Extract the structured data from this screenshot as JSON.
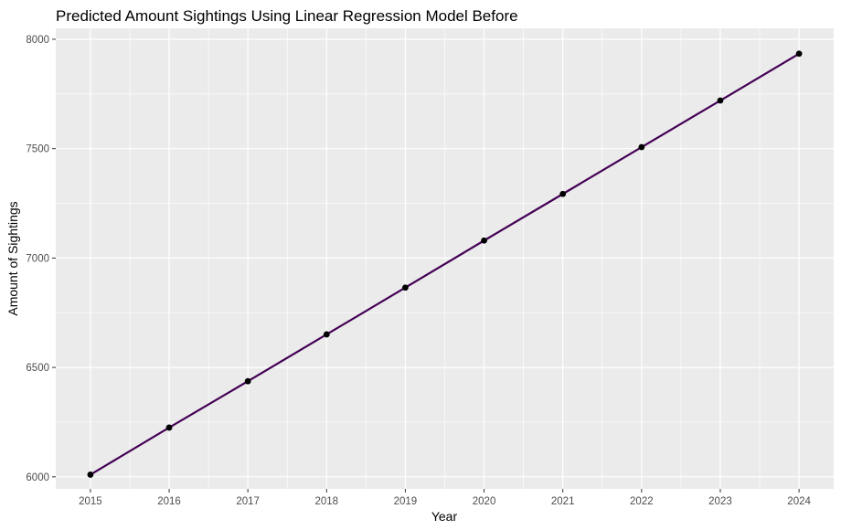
{
  "chart_data": {
    "type": "line",
    "title": "Predicted Amount Sightings Using Linear Regression Model Before",
    "xlabel": "Year",
    "ylabel": "Amount of Sightings",
    "x": [
      2015,
      2016,
      2017,
      2018,
      2019,
      2020,
      2021,
      2022,
      2023,
      2024
    ],
    "series": [
      {
        "values": [
          6010,
          6225,
          6437,
          6651,
          6865,
          7080,
          7293,
          7507,
          7720,
          7934
        ]
      }
    ],
    "x_ticks": [
      "2015",
      "2016",
      "2017",
      "2018",
      "2019",
      "2020",
      "2021",
      "2022",
      "2023",
      "2024"
    ],
    "y_ticks": [
      6000,
      6500,
      7000,
      7500,
      8000
    ],
    "y_tick_labels": [
      "6000",
      "6500",
      "7000",
      "7500",
      "8000"
    ],
    "xlim": [
      2014.56,
      2024.44
    ],
    "ylim": [
      5945,
      8050
    ],
    "grid": true,
    "markers": true,
    "colors": {
      "panel": "#ebebeb",
      "grid": "#ffffff",
      "line": "#440154",
      "point": "#000000"
    }
  }
}
